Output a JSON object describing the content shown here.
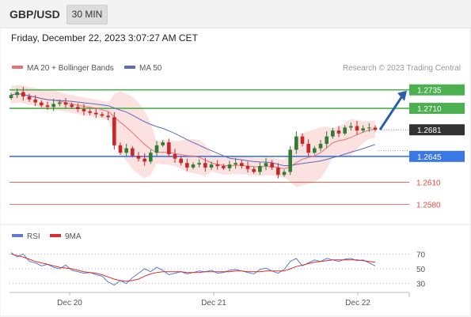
{
  "header": {
    "symbol": "GBP/USD",
    "timeframe": "30 MIN",
    "datetime": "Friday, December 22, 2023 3:07:27 AM CET"
  },
  "legend": {
    "bollinger_label": "MA 20 + Bollinger Bands",
    "ma50_label": "MA 50",
    "rsi_label": "RSI",
    "rsi_ma_label": "9MA",
    "credit": "Research © 2023 Trading Central"
  },
  "colors": {
    "candle_up": "#2e7d32",
    "candle_down": "#c62828",
    "bollinger_fill": "#fbdada",
    "ma20": "#e57373",
    "ma50": "#5c6bc0",
    "resistance": "#4caf50",
    "pivot": "#3b78e7",
    "support": "#e74c3c",
    "last_price": "#333333",
    "rsi": "#5b7bd5",
    "rsi_ma": "#d32f2f",
    "arrow": "#2b5ea7"
  },
  "chart_data": {
    "type": "candlestick",
    "x_tick_labels": [
      "Dec 20",
      "Dec 21",
      "Dec 22"
    ],
    "ylim": [
      1.2555,
      1.2755
    ],
    "close_path": [
      1.2728,
      1.2732,
      1.2726,
      1.2722,
      1.2718,
      1.2714,
      1.2712,
      1.2716,
      1.2718,
      1.2715,
      1.2712,
      1.2709,
      1.2706,
      1.2704,
      1.2702,
      1.27,
      1.2698,
      1.266,
      1.265,
      1.2656,
      1.2646,
      1.2642,
      1.2638,
      1.265,
      1.266,
      1.2664,
      1.2648,
      1.2642,
      1.2636,
      1.263,
      1.2634,
      1.2636,
      1.263,
      1.2634,
      1.2632,
      1.2629,
      1.2634,
      1.2636,
      1.2632,
      1.2628,
      1.2624,
      1.2632,
      1.2636,
      1.263,
      1.262,
      1.2624,
      1.2654,
      1.2672,
      1.2662,
      1.265,
      1.2656,
      1.2662,
      1.2672,
      1.268,
      1.2676,
      1.2684,
      1.2686,
      1.268,
      1.2683,
      1.2684,
      1.2681
    ],
    "levels": [
      {
        "label": "1.2735",
        "value": 1.2735,
        "kind": "resistance"
      },
      {
        "label": "1.2710",
        "value": 1.271,
        "kind": "resistance"
      },
      {
        "label": "1.2681",
        "value": 1.2681,
        "kind": "last"
      },
      {
        "label": "1.2645",
        "value": 1.2645,
        "kind": "pivot"
      },
      {
        "label": "1.2610",
        "value": 1.261,
        "kind": "support"
      },
      {
        "label": "1.2580",
        "value": 1.258,
        "kind": "support"
      }
    ],
    "rsi": {
      "ylim": [
        20,
        80
      ],
      "ticks": [
        {
          "label": "70",
          "value": 70
        },
        {
          "label": "50",
          "value": 50
        },
        {
          "label": "30",
          "value": 30
        }
      ],
      "rsi_values": [
        72,
        66,
        70,
        60,
        58,
        54,
        56,
        52,
        50,
        55,
        48,
        46,
        44,
        45,
        42,
        40,
        32,
        28,
        34,
        30,
        38,
        44,
        50,
        46,
        52,
        48,
        42,
        44,
        46,
        43,
        45,
        47,
        46,
        48,
        44,
        45,
        48,
        49,
        47,
        45,
        43,
        49,
        51,
        47,
        44,
        49,
        60,
        64,
        54,
        58,
        62,
        60,
        64,
        62,
        60,
        63,
        64,
        61,
        62,
        58,
        54
      ],
      "ma_values": [
        70,
        68,
        66,
        63,
        60,
        58,
        56,
        54,
        52,
        51,
        50,
        48,
        46,
        45,
        44,
        42,
        39,
        36,
        34,
        33,
        34,
        36,
        40,
        43,
        45,
        46,
        46,
        46,
        46,
        45,
        45,
        45,
        46,
        46,
        46,
        46,
        46,
        47,
        47,
        46,
        46,
        46,
        47,
        47,
        47,
        47,
        50,
        53,
        55,
        57,
        59,
        60,
        61,
        62,
        62,
        62,
        62,
        62,
        61,
        60,
        59
      ]
    }
  }
}
